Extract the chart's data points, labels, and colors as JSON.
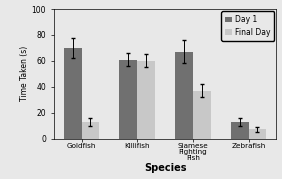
{
  "categories": [
    "Goldfish",
    "Killifish",
    "Siamese\nFighting\nFish",
    "Zebrafish"
  ],
  "day1_values": [
    70,
    61,
    67,
    13
  ],
  "day1_errors": [
    8,
    5,
    9,
    3
  ],
  "final_values": [
    13,
    60,
    37,
    7
  ],
  "final_errors": [
    3,
    5,
    5,
    2
  ],
  "day1_color": "#707070",
  "final_color": "#c8c8c8",
  "xlabel": "Species",
  "ylabel": "Time Taken (s)",
  "ylim": [
    0,
    100
  ],
  "yticks": [
    0,
    20,
    40,
    60,
    80,
    100
  ],
  "legend_day1": "Day 1",
  "legend_final": "Final Day",
  "bar_width": 0.32,
  "bg_color": "#e8e8e8"
}
